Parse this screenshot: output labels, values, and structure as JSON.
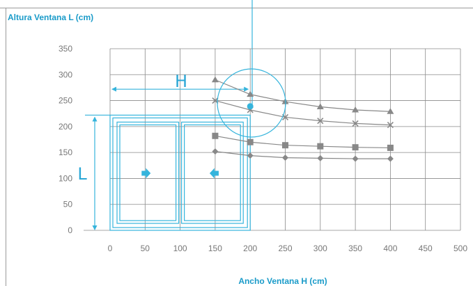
{
  "chart_data": {
    "type": "line",
    "ylabel": "Altura Ventana L (cm)",
    "xlabel": "Ancho Ventana H (cm)",
    "xlim": [
      0,
      500
    ],
    "ylim": [
      0,
      350
    ],
    "xticks": [
      "0",
      "50",
      "100",
      "150",
      "200",
      "250",
      "300",
      "350",
      "400",
      "450",
      "500"
    ],
    "yticks": [
      "350",
      "300",
      "250",
      "200",
      "150",
      "100",
      "50",
      "0"
    ],
    "grid": true,
    "series": [
      {
        "marker": "triangle",
        "x": [
          150,
          200,
          250,
          300,
          350,
          400
        ],
        "values": [
          290,
          262,
          248,
          238,
          232,
          229
        ]
      },
      {
        "marker": "cross",
        "x": [
          150,
          200,
          250,
          300,
          350,
          400
        ],
        "values": [
          250,
          232,
          218,
          211,
          206,
          203
        ]
      },
      {
        "marker": "square",
        "x": [
          150,
          200,
          250,
          300,
          350,
          400
        ],
        "values": [
          182,
          170,
          164,
          162,
          160,
          159
        ]
      },
      {
        "marker": "diamond",
        "x": [
          150,
          200,
          250,
          300,
          350,
          400
        ],
        "values": [
          152,
          144,
          140,
          139,
          138,
          138
        ]
      }
    ],
    "highlight_point": {
      "x": 200,
      "y": 239
    },
    "window_illustration": {
      "width": 200,
      "height": 222,
      "width_label": "H",
      "height_label": "L"
    },
    "colors": {
      "accent": "#35b4dc",
      "series": "#888888",
      "grid": "#8a8a8a",
      "title": "#1a9bc9"
    }
  }
}
